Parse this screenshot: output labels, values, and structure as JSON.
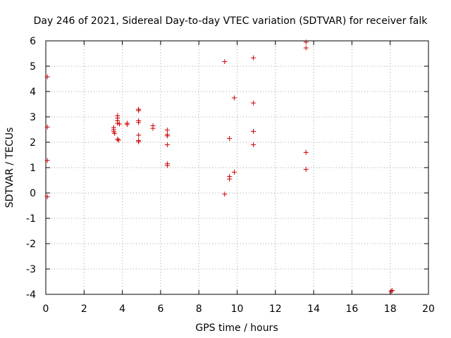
{
  "chart_data": {
    "type": "scatter",
    "title": "Day 246 of 2021, Sidereal Day-to-day VTEC variation (SDTVAR) for receiver falk",
    "xlabel": "GPS time / hours",
    "ylabel": "SDTVAR / TECUs",
    "xlim": [
      0,
      20
    ],
    "ylim": [
      -4,
      6
    ],
    "xticks": [
      "0",
      "2",
      "4",
      "6",
      "8",
      "10",
      "12",
      "14",
      "16",
      "18",
      "20"
    ],
    "yticks": [
      "-4",
      "-3",
      "-2",
      "-1",
      "0",
      "1",
      "2",
      "3",
      "4",
      "5",
      "6"
    ],
    "grid": true,
    "marker": "+",
    "color": "#cc0000",
    "points": [
      [
        0.08,
        4.58
      ],
      [
        0.08,
        2.6
      ],
      [
        0.08,
        1.28
      ],
      [
        0.08,
        -0.15
      ],
      [
        3.55,
        2.58
      ],
      [
        3.55,
        2.5
      ],
      [
        3.55,
        2.42
      ],
      [
        3.6,
        2.35
      ],
      [
        3.75,
        3.05
      ],
      [
        3.75,
        2.95
      ],
      [
        3.75,
        2.85
      ],
      [
        3.75,
        2.75
      ],
      [
        3.85,
        2.72
      ],
      [
        3.75,
        2.12
      ],
      [
        3.8,
        2.08
      ],
      [
        4.25,
        2.75
      ],
      [
        4.25,
        2.7
      ],
      [
        4.85,
        3.3
      ],
      [
        4.85,
        3.25
      ],
      [
        4.85,
        2.85
      ],
      [
        4.85,
        2.78
      ],
      [
        4.85,
        2.28
      ],
      [
        4.85,
        2.07
      ],
      [
        4.85,
        2.02
      ],
      [
        5.6,
        2.65
      ],
      [
        5.6,
        2.55
      ],
      [
        6.35,
        2.48
      ],
      [
        6.35,
        2.3
      ],
      [
        6.35,
        2.25
      ],
      [
        6.35,
        1.9
      ],
      [
        6.35,
        1.15
      ],
      [
        6.35,
        1.08
      ],
      [
        9.35,
        5.18
      ],
      [
        9.35,
        -0.05
      ],
      [
        9.6,
        2.15
      ],
      [
        9.6,
        0.65
      ],
      [
        9.6,
        0.55
      ],
      [
        9.85,
        3.75
      ],
      [
        9.85,
        0.82
      ],
      [
        10.85,
        5.33
      ],
      [
        10.85,
        3.55
      ],
      [
        10.85,
        2.43
      ],
      [
        10.85,
        1.9
      ],
      [
        13.6,
        5.95
      ],
      [
        13.6,
        5.72
      ],
      [
        13.6,
        1.6
      ],
      [
        13.6,
        0.93
      ],
      [
        18.1,
        -3.85
      ],
      [
        18.05,
        -3.88
      ]
    ]
  }
}
